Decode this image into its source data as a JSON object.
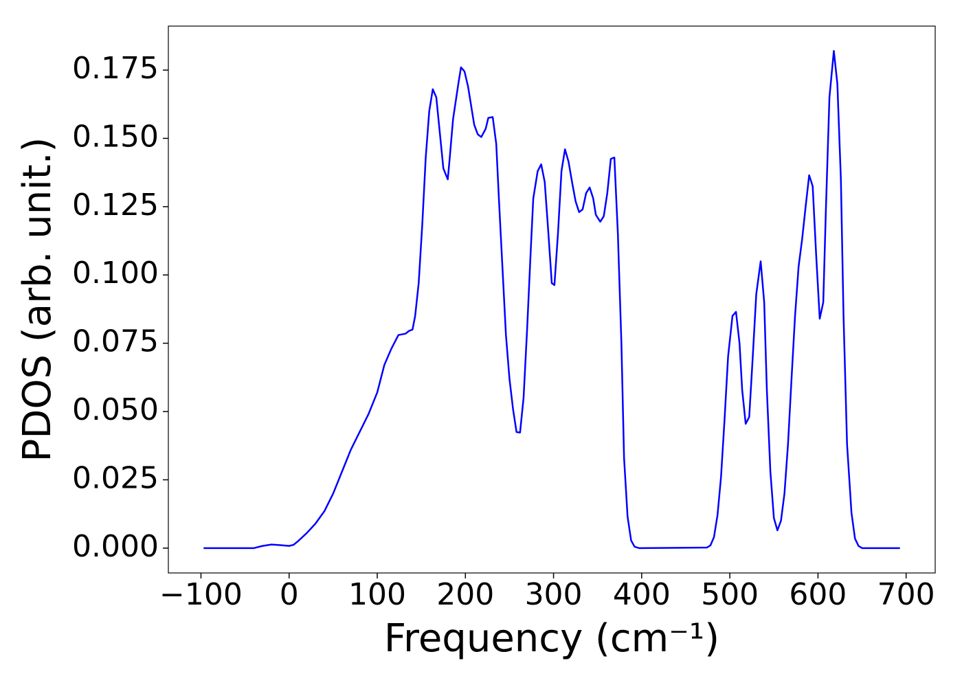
{
  "chart_data": {
    "type": "line",
    "xlabel": "Frequency (cm⁻¹)",
    "ylabel": "PDOS (arb. unit.)",
    "x": [
      -97,
      -40,
      -30,
      -20,
      -10,
      0,
      5,
      10,
      20,
      30,
      40,
      50,
      60,
      70,
      80,
      90,
      100,
      108,
      116,
      124,
      132,
      136,
      140,
      143,
      147,
      151,
      155,
      159,
      163,
      167,
      175,
      180,
      182,
      186,
      192,
      195,
      199,
      203,
      210,
      214,
      218,
      223,
      226,
      231,
      235,
      238,
      242,
      246,
      250,
      254,
      258,
      262,
      266,
      270,
      274,
      277,
      282,
      286,
      290,
      294,
      298,
      301,
      305,
      309,
      313,
      317,
      321,
      325,
      329,
      333,
      337,
      341,
      345,
      348,
      353,
      357,
      361,
      365,
      369,
      373,
      377,
      380,
      384,
      388,
      392,
      397,
      474,
      478,
      482,
      486,
      490,
      494,
      498,
      503,
      507,
      511,
      514,
      518,
      522,
      526,
      530,
      535,
      539,
      542,
      546,
      550,
      554,
      558,
      562,
      566,
      570,
      574,
      578,
      582,
      586,
      590,
      594,
      598,
      602,
      606,
      609,
      613,
      618,
      622,
      626,
      629,
      633,
      638,
      642,
      646,
      650,
      693
    ],
    "series": [
      {
        "color": "#0000ff",
        "values": [
          0,
          0,
          0.0008,
          0.0013,
          0.0011,
          0.0008,
          0.0012,
          0.0025,
          0.0055,
          0.009,
          0.0135,
          0.02,
          0.028,
          0.036,
          0.0425,
          0.049,
          0.057,
          0.067,
          0.073,
          0.078,
          0.0785,
          0.0795,
          0.08,
          0.085,
          0.097,
          0.118,
          0.143,
          0.16,
          0.168,
          0.165,
          0.139,
          0.135,
          0.142,
          0.157,
          0.17,
          0.176,
          0.1745,
          0.169,
          0.155,
          0.1515,
          0.1505,
          0.1535,
          0.1575,
          0.1578,
          0.148,
          0.128,
          0.103,
          0.078,
          0.062,
          0.051,
          0.0425,
          0.0423,
          0.055,
          0.08,
          0.108,
          0.128,
          0.138,
          0.1405,
          0.134,
          0.116,
          0.097,
          0.0963,
          0.115,
          0.138,
          0.146,
          0.1415,
          0.134,
          0.127,
          0.123,
          0.124,
          0.13,
          0.132,
          0.128,
          0.122,
          0.1195,
          0.1215,
          0.13,
          0.1425,
          0.143,
          0.115,
          0.075,
          0.033,
          0.0115,
          0.0028,
          0.0005,
          0,
          0.0002,
          0.001,
          0.004,
          0.012,
          0.026,
          0.047,
          0.07,
          0.085,
          0.0865,
          0.075,
          0.058,
          0.0455,
          0.048,
          0.07,
          0.093,
          0.105,
          0.09,
          0.058,
          0.028,
          0.011,
          0.0065,
          0.01,
          0.02,
          0.038,
          0.062,
          0.085,
          0.103,
          0.113,
          0.125,
          0.1365,
          0.1325,
          0.107,
          0.084,
          0.09,
          0.124,
          0.165,
          0.182,
          0.17,
          0.135,
          0.085,
          0.038,
          0.013,
          0.0035,
          0.0008,
          0,
          0
        ]
      }
    ],
    "xlim": [
      -137,
      733
    ],
    "ylim": [
      -0.0091,
      0.1911
    ],
    "xticks": [
      {
        "value": -100,
        "label": "−100"
      },
      0,
      100,
      200,
      300,
      400,
      500,
      600,
      700
    ],
    "yticks": [
      {
        "value": 0,
        "label": "0.000"
      },
      {
        "value": 0.025,
        "label": "0.025"
      },
      {
        "value": 0.05,
        "label": "0.050"
      },
      {
        "value": 0.075,
        "label": "0.075"
      },
      {
        "value": 0.1,
        "label": "0.100"
      },
      {
        "value": 0.125,
        "label": "0.125"
      },
      {
        "value": 0.15,
        "label": "0.150"
      },
      {
        "value": 0.175,
        "label": "0.175"
      }
    ]
  }
}
